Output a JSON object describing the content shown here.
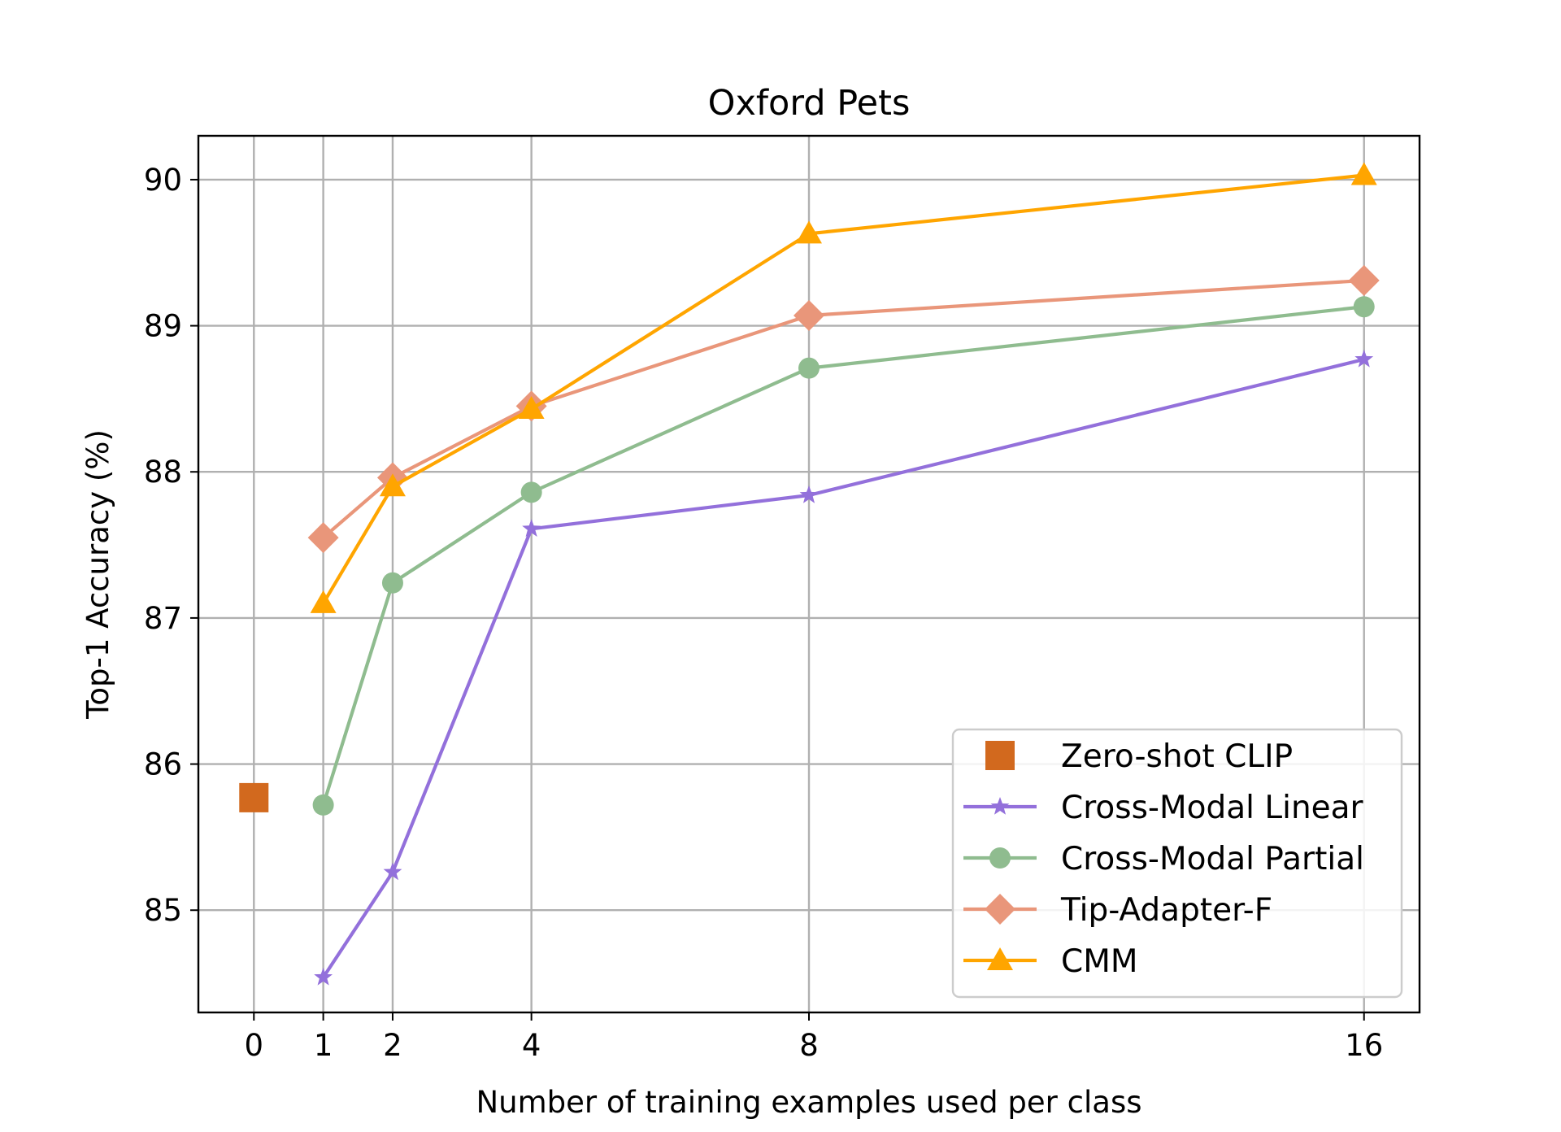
{
  "chart_data": {
    "type": "line",
    "title": "Oxford Pets",
    "xlabel": "Number of training examples used per class",
    "ylabel": "Top-1 Accuracy (%)",
    "xlim": [
      -0.8,
      16.8
    ],
    "ylim": [
      84.3,
      90.3
    ],
    "x_ticks": [
      0,
      1,
      2,
      4,
      8,
      16
    ],
    "x_tick_labels": [
      "0",
      "1",
      "2",
      "4",
      "8",
      "16"
    ],
    "y_ticks": [
      85,
      86,
      87,
      88,
      89,
      90
    ],
    "y_tick_labels": [
      "85",
      "86",
      "87",
      "88",
      "89",
      "90"
    ],
    "grid": true,
    "legend_position": "lower-right",
    "series": [
      {
        "name": "Zero-shot CLIP",
        "color": "#d2691e",
        "marker": "square",
        "line": false,
        "x": [
          0
        ],
        "values": [
          85.77
        ]
      },
      {
        "name": "Cross-Modal Linear",
        "color": "#9370db",
        "marker": "star",
        "line": true,
        "x": [
          1,
          2,
          4,
          8,
          16
        ],
        "values": [
          84.54,
          85.26,
          87.61,
          87.84,
          88.77
        ]
      },
      {
        "name": "Cross-Modal Partial",
        "color": "#8fbc8f",
        "marker": "circle",
        "line": true,
        "x": [
          1,
          2,
          4,
          8,
          16
        ],
        "values": [
          85.72,
          87.24,
          87.86,
          88.71,
          89.13
        ]
      },
      {
        "name": "Tip-Adapter-F",
        "color": "#e9967a",
        "marker": "diamond",
        "line": true,
        "x": [
          1,
          2,
          4,
          8,
          16
        ],
        "values": [
          87.55,
          87.96,
          88.45,
          89.07,
          89.31
        ]
      },
      {
        "name": "CMM",
        "color": "#ffa500",
        "marker": "triangle",
        "line": true,
        "x": [
          1,
          2,
          4,
          8,
          16
        ],
        "values": [
          87.1,
          87.9,
          88.43,
          89.63,
          90.03
        ]
      }
    ]
  }
}
